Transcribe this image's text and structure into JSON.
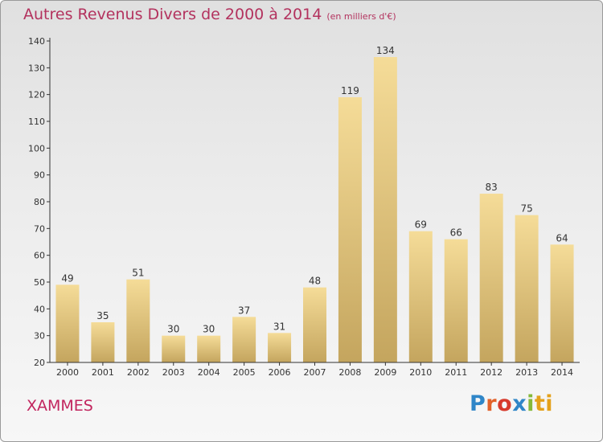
{
  "header": {
    "title": "Autres Revenus Divers de 2000 à 2014",
    "subtitle": "(en milliers d'€)"
  },
  "location": "XAMMES",
  "logo": {
    "letters": [
      "P",
      "r",
      "o",
      "x",
      "i",
      "ti"
    ]
  },
  "colors": {
    "title": "#b3325e",
    "bar_top": "#f5dc98",
    "bar_bottom": "#c4a55e",
    "axis": "#333333"
  },
  "chart_data": {
    "type": "bar",
    "categories": [
      "2000",
      "2001",
      "2002",
      "2003",
      "2004",
      "2005",
      "2006",
      "2007",
      "2008",
      "2009",
      "2010",
      "2011",
      "2012",
      "2013",
      "2014"
    ],
    "values": [
      49,
      35,
      51,
      30,
      30,
      37,
      31,
      48,
      119,
      134,
      69,
      66,
      83,
      75,
      64
    ],
    "ylim": [
      20,
      140
    ],
    "yticks": [
      20,
      30,
      40,
      50,
      60,
      70,
      80,
      90,
      100,
      110,
      120,
      130,
      140
    ],
    "grid": false,
    "legend": "none"
  }
}
